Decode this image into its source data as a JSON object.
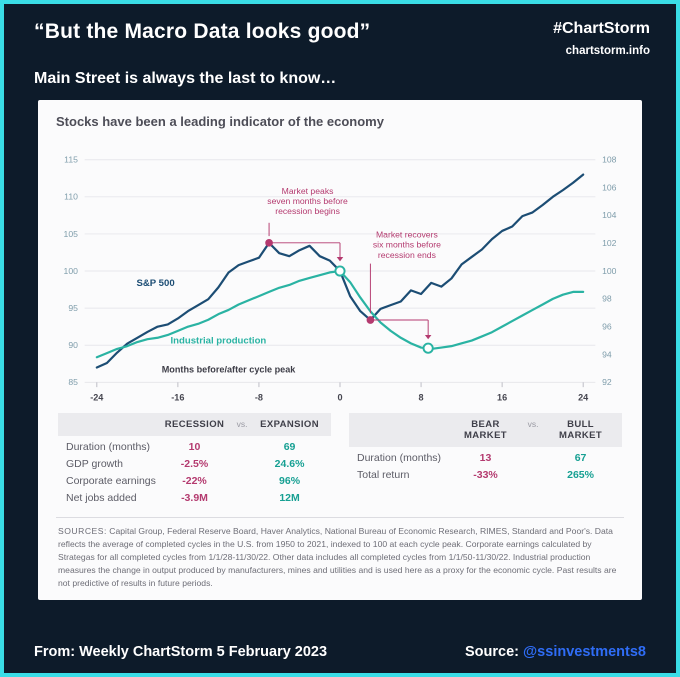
{
  "header": {
    "quote": "“But the Macro Data looks good”",
    "hashtag": "#ChartStorm",
    "site": "chartstorm.info",
    "subtitle": "Main Street is always the last to know…"
  },
  "chart_data": {
    "type": "line",
    "title": "Stocks have been a leading indicator of the economy",
    "xlabel": "Months before/after cycle peak",
    "xlabel_pos": [
      -11,
      86.3
    ],
    "xlim": [
      -24,
      24
    ],
    "x_ticks": [
      -24,
      -16,
      -8,
      0,
      8,
      16,
      24
    ],
    "left_axis": {
      "ticks": [
        85,
        90,
        95,
        100,
        105,
        110,
        115
      ],
      "range": [
        85,
        115
      ]
    },
    "right_axis": {
      "ticks": [
        92,
        94,
        96,
        98,
        100,
        102,
        104,
        106,
        108
      ],
      "range": [
        92,
        108
      ]
    },
    "grid": true,
    "accent": "#b43a6f",
    "series": [
      {
        "name": "S&P 500",
        "axis": "left",
        "color": "#1c4d74",
        "label_pos": [
          -18.2,
          98
        ],
        "points": [
          [
            -24,
            87
          ],
          [
            -23,
            87.6
          ],
          [
            -22,
            89
          ],
          [
            -21,
            90.2
          ],
          [
            -20,
            91
          ],
          [
            -19,
            91.8
          ],
          [
            -18,
            92.5
          ],
          [
            -17,
            92.8
          ],
          [
            -16,
            93.6
          ],
          [
            -15,
            94.6
          ],
          [
            -14,
            95.4
          ],
          [
            -13,
            96.2
          ],
          [
            -12,
            97.8
          ],
          [
            -11,
            99.8
          ],
          [
            -10,
            100.8
          ],
          [
            -9,
            101.3
          ],
          [
            -8,
            101.8
          ],
          [
            -7,
            103.8
          ],
          [
            -6,
            102.4
          ],
          [
            -5,
            102
          ],
          [
            -4,
            102.8
          ],
          [
            -3,
            103.4
          ],
          [
            -2,
            102
          ],
          [
            -1,
            101.4
          ],
          [
            0,
            100
          ],
          [
            1,
            96.6
          ],
          [
            2,
            94.6
          ],
          [
            3,
            93.4
          ],
          [
            4,
            94.9
          ],
          [
            5,
            95.4
          ],
          [
            6,
            95.9
          ],
          [
            7,
            97.4
          ],
          [
            8,
            96.9
          ],
          [
            9,
            98.4
          ],
          [
            10,
            97.9
          ],
          [
            11,
            99
          ],
          [
            12,
            100.9
          ],
          [
            13,
            101.9
          ],
          [
            14,
            102.9
          ],
          [
            15,
            104.3
          ],
          [
            16,
            105.4
          ],
          [
            17,
            106
          ],
          [
            18,
            107.4
          ],
          [
            19,
            107.9
          ],
          [
            20,
            108.9
          ],
          [
            21,
            110
          ],
          [
            22,
            110.9
          ],
          [
            23,
            111.9
          ],
          [
            24,
            113
          ]
        ]
      },
      {
        "name": "Industrial production",
        "axis": "right",
        "color": "#2ab3a3",
        "label_pos": [
          -12,
          90.2
        ],
        "points": [
          [
            -24,
            93.8
          ],
          [
            -23,
            94.1
          ],
          [
            -22,
            94.4
          ],
          [
            -21,
            94.6
          ],
          [
            -20,
            94.9
          ],
          [
            -19,
            95.1
          ],
          [
            -18,
            95.2
          ],
          [
            -17,
            95.4
          ],
          [
            -16,
            95.7
          ],
          [
            -15,
            96
          ],
          [
            -14,
            96.2
          ],
          [
            -13,
            96.5
          ],
          [
            -12,
            96.9
          ],
          [
            -11,
            97.2
          ],
          [
            -10,
            97.6
          ],
          [
            -9,
            97.9
          ],
          [
            -8,
            98.2
          ],
          [
            -7,
            98.5
          ],
          [
            -6,
            98.8
          ],
          [
            -5,
            99
          ],
          [
            -4,
            99.3
          ],
          [
            -3,
            99.5
          ],
          [
            -2,
            99.7
          ],
          [
            -1,
            99.9
          ],
          [
            0,
            100
          ],
          [
            1,
            99.2
          ],
          [
            2,
            98.1
          ],
          [
            3,
            97.1
          ],
          [
            4,
            96.3
          ],
          [
            5,
            95.7
          ],
          [
            6,
            95.2
          ],
          [
            7,
            94.8
          ],
          [
            8,
            94.5
          ],
          [
            9,
            94.4
          ],
          [
            10,
            94.5
          ],
          [
            11,
            94.6
          ],
          [
            12,
            94.8
          ],
          [
            13,
            95
          ],
          [
            14,
            95.3
          ],
          [
            15,
            95.6
          ],
          [
            16,
            96
          ],
          [
            17,
            96.4
          ],
          [
            18,
            96.8
          ],
          [
            19,
            97.2
          ],
          [
            20,
            97.6
          ],
          [
            21,
            98
          ],
          [
            22,
            98.3
          ],
          [
            23,
            98.5
          ],
          [
            24,
            98.5
          ]
        ]
      }
    ],
    "markers": {
      "dots": [
        [
          -7,
          103.8
        ],
        [
          3,
          93.4
        ]
      ],
      "open_circles": [
        [
          0,
          100
        ],
        [
          8.7,
          89.6
        ]
      ]
    },
    "annotations": [
      {
        "lines": [
          "Market peaks",
          "seven months before",
          "recession begins"
        ],
        "tx": -3.2,
        "ty": 110.4,
        "vx": -7,
        "vtop": 106.5,
        "dot_y": 103.8,
        "h_to": 0,
        "arrow_to": 101.3
      },
      {
        "lines": [
          "Market recovers",
          "six months before",
          "recession ends"
        ],
        "tx": 6.6,
        "ty": 104.5,
        "vx": 3,
        "vtop": 101,
        "dot_y": 93.4,
        "h_to": 8.7,
        "arrow_to": 90.8
      }
    ]
  },
  "tables": [
    {
      "col_a": "RECESSION",
      "vs": "vs.",
      "col_b": "EXPANSION",
      "rows": [
        {
          "label": "Duration (months)",
          "a": "10",
          "b": "69"
        },
        {
          "label": "GDP growth",
          "a": "-2.5%",
          "b": "24.6%"
        },
        {
          "label": "Corporate earnings",
          "a": "-22%",
          "b": "96%"
        },
        {
          "label": "Net jobs added",
          "a": "-3.9M",
          "b": "12M"
        }
      ]
    },
    {
      "col_a": "BEAR MARKET",
      "vs": "vs.",
      "col_b": "BULL MARKET",
      "rows": [
        {
          "label": "Duration (months)",
          "a": "13",
          "b": "67"
        },
        {
          "label": "Total return",
          "a": "-33%",
          "b": "265%"
        }
      ]
    }
  ],
  "sources": {
    "label": "SOURCES:",
    "text": "Capital Group, Federal Reserve Board, Haver Analytics, National Bureau of Economic Research, RIMES, Standard and Poor's. Data reflects the average of completed cycles in the U.S. from 1950 to 2021, indexed to 100 at each cycle peak. Corporate earnings calculated by Strategas for all completed cycles from 1/1/28-11/30/22. Other data includes all completed cycles from 1/1/50-11/30/22. Industrial production measures the change in output produced by manufacturers, mines and utilities and is used here as a proxy for the economic cycle. Past results are not predictive of results in future periods."
  },
  "footer": {
    "from": "From: Weekly ChartStorm 5 February 2023",
    "source_label": "Source:",
    "source_handle": "@ssinvestments8"
  }
}
